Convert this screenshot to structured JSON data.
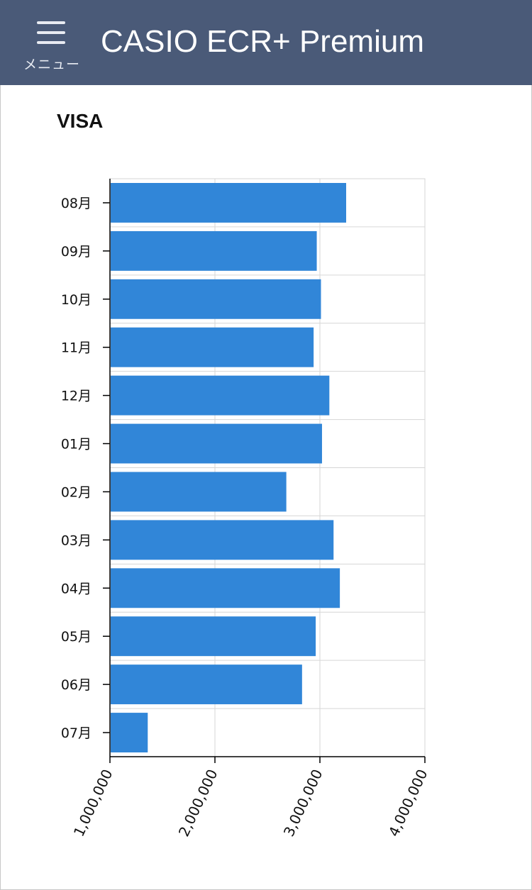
{
  "header": {
    "menu_label": "メニュー",
    "app_title": "CASIO ECR+ Premium",
    "background_color": "#4a5a78"
  },
  "chart_data": {
    "type": "bar",
    "orientation": "horizontal",
    "title": "VISA",
    "xlabel": "",
    "ylabel": "",
    "categories": [
      "08月",
      "09月",
      "10月",
      "11月",
      "12月",
      "01月",
      "02月",
      "03月",
      "04月",
      "05月",
      "06月",
      "07月"
    ],
    "values": [
      3250000,
      2970000,
      3010000,
      2940000,
      3090000,
      3020000,
      2680000,
      3130000,
      3190000,
      2960000,
      2830000,
      1360000
    ],
    "xlim": [
      1000000,
      4000000
    ],
    "x_ticks": [
      1000000,
      2000000,
      3000000,
      4000000
    ],
    "x_tick_labels": [
      "1,000,000",
      "2,000,000",
      "3,000,000",
      "4,000,000"
    ],
    "grid": true,
    "bar_color": "#3186d8"
  }
}
